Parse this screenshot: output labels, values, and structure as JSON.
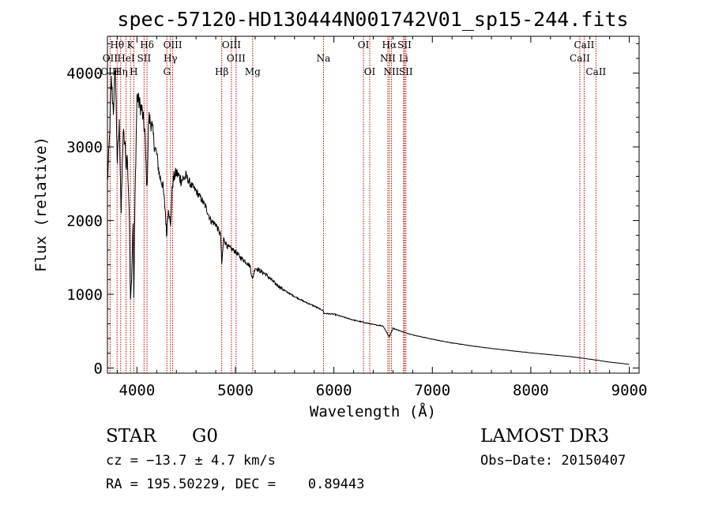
{
  "chart_data": {
    "type": "line",
    "title": "spec-57120-HD130444N001742V01_sp15-244.fits",
    "xlabel": "Wavelength (Å)",
    "ylabel": "Flux (relative)",
    "xlim": [
      3700,
      9100
    ],
    "ylim": [
      -70,
      4500
    ],
    "xticks": [
      4000,
      5000,
      6000,
      7000,
      8000,
      9000
    ],
    "yticks": [
      0,
      1000,
      2000,
      3000,
      4000
    ],
    "series": [
      {
        "name": "spectrum",
        "x": [
          3700,
          3720,
          3740,
          3760,
          3780,
          3800,
          3820,
          3840,
          3860,
          3880,
          3890,
          3900,
          3920,
          3934,
          3945,
          3960,
          3968,
          3980,
          4000,
          4020,
          4050,
          4080,
          4101,
          4120,
          4150,
          4180,
          4200,
          4230,
          4260,
          4290,
          4300,
          4320,
          4340,
          4360,
          4380,
          4400,
          4450,
          4500,
          4550,
          4600,
          4650,
          4700,
          4750,
          4800,
          4850,
          4861,
          4880,
          4920,
          4950,
          5000,
          5050,
          5100,
          5150,
          5172,
          5200,
          5270,
          5300,
          5400,
          5500,
          5600,
          5700,
          5800,
          5890,
          5900,
          6000,
          6100,
          6200,
          6300,
          6400,
          6500,
          6563,
          6600,
          6700,
          6800,
          6900,
          7000,
          7200,
          7400,
          7600,
          7800,
          8000,
          8200,
          8400,
          8600,
          8800,
          9000
        ],
        "values": [
          2500,
          3100,
          3900,
          3500,
          4050,
          2800,
          3300,
          2100,
          3200,
          3000,
          2700,
          2900,
          2200,
          950,
          1200,
          2000,
          950,
          2300,
          3700,
          3600,
          3500,
          3200,
          2400,
          3400,
          3300,
          3000,
          2900,
          2600,
          2500,
          2100,
          1800,
          2200,
          1900,
          2500,
          2600,
          2650,
          2550,
          2600,
          2480,
          2400,
          2300,
          2180,
          2000,
          1950,
          1800,
          1400,
          1750,
          1650,
          1620,
          1580,
          1500,
          1450,
          1380,
          1200,
          1360,
          1300,
          1280,
          1150,
          1050,
          970,
          900,
          840,
          780,
          740,
          730,
          690,
          650,
          620,
          590,
          570,
          420,
          540,
          490,
          450,
          420,
          390,
          340,
          300,
          265,
          235,
          205,
          180,
          155,
          120,
          80,
          50
        ]
      }
    ],
    "line_markers": [
      {
        "label": "Hθ",
        "wavelength": 3798,
        "row": 1
      },
      {
        "label": "OII",
        "wavelength": 3727,
        "row": 2
      },
      {
        "label": "OIII",
        "wavelength": 3727,
        "row": 3
      },
      {
        "label": "HeI",
        "wavelength": 3889,
        "row": 2
      },
      {
        "label": "Hη",
        "wavelength": 3835,
        "row": 3
      },
      {
        "label": "K",
        "wavelength": 3934,
        "row": 1
      },
      {
        "label": "H",
        "wavelength": 3968,
        "row": 3
      },
      {
        "label": "SII",
        "wavelength": 4072,
        "row": 2
      },
      {
        "label": "Hδ",
        "wavelength": 4102,
        "row": 1
      },
      {
        "label": "OIII",
        "wavelength": 4363,
        "row": 1
      },
      {
        "label": "Hγ",
        "wavelength": 4340,
        "row": 2
      },
      {
        "label": "G",
        "wavelength": 4304,
        "row": 3
      },
      {
        "label": "Hβ",
        "wavelength": 4861,
        "row": 3
      },
      {
        "label": "OIII",
        "wavelength": 4959,
        "row": 1
      },
      {
        "label": "OIII",
        "wavelength": 5007,
        "row": 2
      },
      {
        "label": "Mg",
        "wavelength": 5175,
        "row": 3
      },
      {
        "label": "Na",
        "wavelength": 5894,
        "row": 2
      },
      {
        "label": "OI",
        "wavelength": 6300,
        "row": 1
      },
      {
        "label": "OI",
        "wavelength": 6364,
        "row": 3
      },
      {
        "label": "Hα",
        "wavelength": 6563,
        "row": 1
      },
      {
        "label": "NII",
        "wavelength": 6548,
        "row": 2
      },
      {
        "label": "NII",
        "wavelength": 6584,
        "row": 3
      },
      {
        "label": "SII",
        "wavelength": 6717,
        "row": 1
      },
      {
        "label": "Li",
        "wavelength": 6708,
        "row": 2
      },
      {
        "label": "SII",
        "wavelength": 6731,
        "row": 3
      },
      {
        "label": "CaII",
        "wavelength": 8542,
        "row": 1
      },
      {
        "label": "CaII",
        "wavelength": 8498,
        "row": 2
      },
      {
        "label": "CaII",
        "wavelength": 8662,
        "row": 3
      }
    ]
  },
  "info": {
    "object_class": "STAR",
    "subclass": "G0",
    "survey": "LAMOST DR3",
    "cz": "cz = −13.7 ± 4.7 km/s",
    "obs_date": "Obs−Date: 20150407",
    "coords": "RA = 195.50229, DEC =    0.89443"
  },
  "colors": {
    "spectrum": "#000000",
    "line_markers": "#c00000",
    "background": "#ffffff"
  }
}
